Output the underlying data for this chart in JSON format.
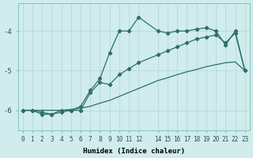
{
  "xlabel": "Humidex (Indice chaleur)",
  "bg_color": "#d0eced",
  "line_color": "#2d7068",
  "grid_color": "#b8d8da",
  "xlim": [
    -0.5,
    23.5
  ],
  "ylim": [
    -6.5,
    -3.3
  ],
  "xticks": [
    0,
    1,
    2,
    3,
    4,
    5,
    6,
    7,
    8,
    9,
    10,
    11,
    12,
    14,
    15,
    16,
    17,
    18,
    19,
    20,
    21,
    22,
    23
  ],
  "yticks": [
    -6,
    -5,
    -4
  ],
  "line1_x": [
    0,
    1,
    2,
    3,
    4,
    5,
    6,
    7,
    8,
    9,
    10,
    11,
    12,
    13,
    14,
    15,
    16,
    17,
    18,
    19,
    20,
    21,
    22,
    23
  ],
  "line1_y": [
    -6.0,
    -6.0,
    -6.0,
    -6.0,
    -6.0,
    -5.98,
    -5.95,
    -5.9,
    -5.82,
    -5.75,
    -5.65,
    -5.55,
    -5.45,
    -5.35,
    -5.25,
    -5.18,
    -5.1,
    -5.03,
    -4.97,
    -4.9,
    -4.85,
    -4.8,
    -4.78,
    -5.0
  ],
  "line2_x": [
    0,
    1,
    2,
    3,
    4,
    5,
    6,
    7,
    8,
    9,
    10,
    11,
    12,
    14,
    15,
    16,
    17,
    18,
    19,
    20,
    21,
    22,
    23
  ],
  "line2_y": [
    -6.0,
    -6.0,
    -6.1,
    -6.1,
    -6.05,
    -6.0,
    -6.0,
    -5.55,
    -5.3,
    -5.35,
    -5.1,
    -4.95,
    -4.8,
    -4.6,
    -4.5,
    -4.4,
    -4.3,
    -4.2,
    -4.15,
    -4.1,
    -4.3,
    -4.05,
    -5.0
  ],
  "line3_x": [
    0,
    1,
    2,
    3,
    4,
    5,
    6,
    7,
    8,
    9,
    10,
    11,
    12,
    14,
    15,
    16,
    17,
    18,
    19,
    20,
    21,
    22,
    23
  ],
  "line3_y": [
    -6.0,
    -6.0,
    -6.05,
    -6.1,
    -6.0,
    -6.0,
    -5.9,
    -5.5,
    -5.2,
    -4.55,
    -4.0,
    -4.0,
    -3.65,
    -4.0,
    -4.05,
    -4.0,
    -4.0,
    -3.95,
    -3.92,
    -4.0,
    -4.35,
    -4.0,
    -5.0
  ]
}
